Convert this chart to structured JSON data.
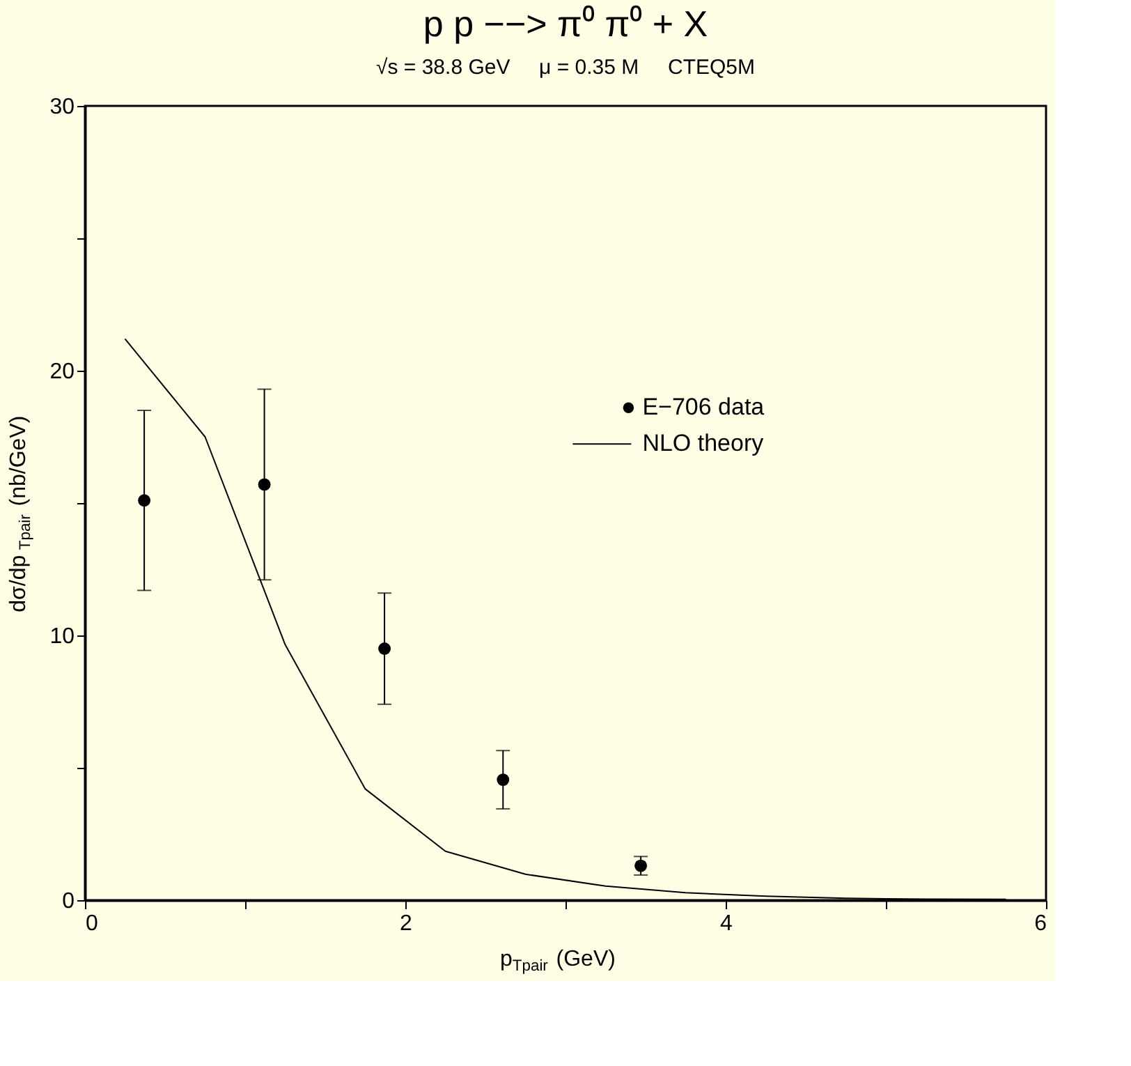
{
  "chart_data": {
    "type": "scatter",
    "title": "p p −−> π⁰ π⁰ + X",
    "subtitle": "√s = 38.8 GeV     μ = 0.35 M     CTEQ5M",
    "xlabel": "p$_{Tpair}$ (GeV)",
    "ylabel": "dσ/dp$_{Tpair}$ (nb/GeV)",
    "xlim": [
      0,
      6
    ],
    "ylim": [
      0,
      30
    ],
    "xticks": [
      0,
      {
        "value": 1,
        "label": null
      },
      2,
      {
        "value": 3,
        "label": null
      },
      4,
      {
        "value": 5,
        "label": null
      },
      6
    ],
    "yticks": [
      0,
      {
        "value": 5,
        "label": null
      },
      10,
      {
        "value": 15,
        "label": null
      },
      20,
      {
        "value": 25,
        "label": null
      },
      30
    ],
    "grid": false,
    "legend": "top right",
    "series": [
      {
        "name": "E−706 data",
        "marker": "circle",
        "color": "#000000",
        "x": [
          0.37,
          1.12,
          1.87,
          2.61,
          3.47
        ],
        "values": [
          15.1,
          15.7,
          9.5,
          4.55,
          1.3
        ],
        "errors": [
          [
            11.7,
            18.5
          ],
          [
            12.1,
            19.3
          ],
          [
            7.4,
            11.6
          ],
          [
            3.45,
            5.65
          ],
          [
            0.95,
            1.65
          ]
        ]
      },
      {
        "name": "NLO theory",
        "type": "line",
        "marker": "none",
        "color": "#000000",
        "line_style": "solid",
        "x": [
          0.25,
          0.75,
          1.25,
          1.75,
          2.25,
          2.75,
          3.25,
          3.75,
          4.25,
          4.75,
          5.25,
          5.75
        ],
        "values": [
          21.2,
          17.5,
          9.65,
          4.2,
          1.85,
          0.98,
          0.53,
          0.28,
          0.15,
          0.07,
          0.04,
          0.03
        ]
      }
    ]
  }
}
